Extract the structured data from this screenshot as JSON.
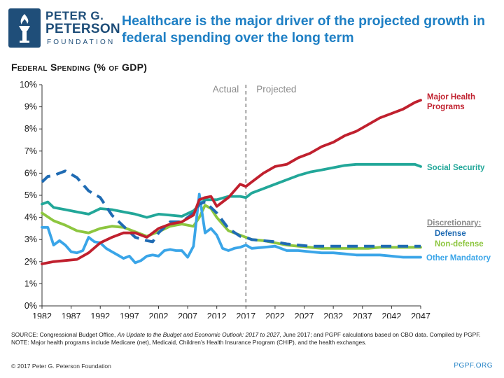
{
  "logo": {
    "line1": "PETER G.",
    "line2": "PETERSON",
    "line3": "FOUNDATION"
  },
  "title": "Healthcare is the major driver of the projected growth in federal spending over the long term",
  "subtitle": "Federal Spending (% of GDP)",
  "notes": {
    "source_prefix": "SOURCE: Congressional Budget Office, ",
    "source_italic": "An Update to the Budget and Economic Outlook: 2017 to 2027",
    "source_suffix": ", June 2017; and PGPF calculations based on CBO data. Compiled by PGPF.",
    "note": "NOTE: Major health programs include Medicare (net), Medicaid, Children’s Health Insurance Program (CHIP), and the health exchanges."
  },
  "footer": {
    "copyright": "© 2017 Peter G. Peterson Foundation",
    "site": "PGPF.ORG"
  },
  "chart_data": {
    "type": "line",
    "xlim": [
      1982,
      2047
    ],
    "ylim": [
      0,
      10
    ],
    "x_ticks": [
      "1982",
      "1987",
      "1992",
      "1997",
      "2002",
      "2007",
      "2012",
      "2017",
      "2022",
      "2027",
      "2032",
      "2037",
      "2042",
      "2047"
    ],
    "y_ticks": [
      "0%",
      "1%",
      "2%",
      "3%",
      "4%",
      "5%",
      "6%",
      "7%",
      "8%",
      "9%",
      "10%"
    ],
    "divider_year": 2017,
    "period_labels": {
      "actual": "Actual",
      "projected": "Projected"
    },
    "group_label": "Discretionary:",
    "series": [
      {
        "name": "Major Health Programs",
        "label": [
          "Major Health",
          "Programs"
        ],
        "color": "#c0202e",
        "dashed": false,
        "x": [
          1982,
          1984,
          1986,
          1988,
          1990,
          1992,
          1994,
          1996,
          1998,
          2000,
          2002,
          2004,
          2006,
          2008,
          2009,
          2010,
          2011,
          2012,
          2014,
          2016,
          2017,
          2018,
          2020,
          2022,
          2024,
          2026,
          2028,
          2030,
          2032,
          2034,
          2036,
          2038,
          2040,
          2042,
          2044,
          2046,
          2047
        ],
        "y": [
          1.9,
          2.0,
          2.05,
          2.1,
          2.4,
          2.85,
          3.1,
          3.3,
          3.3,
          3.1,
          3.5,
          3.7,
          3.8,
          4.1,
          4.8,
          4.9,
          4.95,
          4.5,
          4.9,
          5.5,
          5.4,
          5.6,
          6.0,
          6.3,
          6.4,
          6.7,
          6.9,
          7.2,
          7.4,
          7.7,
          7.9,
          8.2,
          8.5,
          8.7,
          8.9,
          9.2,
          9.3
        ]
      },
      {
        "name": "Social Security",
        "label": [
          "Social Security"
        ],
        "color": "#22a799",
        "dashed": false,
        "x": [
          1982,
          1983,
          1984,
          1986,
          1988,
          1990,
          1992,
          1994,
          1996,
          1998,
          2000,
          2002,
          2004,
          2006,
          2008,
          2010,
          2012,
          2014,
          2016,
          2017,
          2018,
          2020,
          2022,
          2024,
          2026,
          2028,
          2030,
          2032,
          2034,
          2036,
          2038,
          2040,
          2042,
          2044,
          2046,
          2047
        ],
        "y": [
          4.6,
          4.7,
          4.45,
          4.35,
          4.25,
          4.15,
          4.4,
          4.35,
          4.25,
          4.15,
          4.0,
          4.15,
          4.1,
          4.05,
          4.3,
          4.8,
          4.8,
          4.95,
          4.95,
          4.9,
          5.1,
          5.3,
          5.5,
          5.7,
          5.9,
          6.05,
          6.15,
          6.25,
          6.35,
          6.4,
          6.4,
          6.4,
          6.4,
          6.4,
          6.4,
          6.3
        ]
      },
      {
        "name": "Defense",
        "label": [
          "Defense"
        ],
        "color": "#1f6bb3",
        "dashed": true,
        "x": [
          1982,
          1983,
          1984,
          1986,
          1988,
          1990,
          1992,
          1994,
          1996,
          1998,
          2000,
          2001,
          2002,
          2004,
          2006,
          2008,
          2009,
          2010,
          2012,
          2014,
          2016,
          2017,
          2018,
          2020,
          2022,
          2024,
          2026,
          2028,
          2030,
          2032,
          2034,
          2036,
          2038,
          2040,
          2042,
          2044,
          2046,
          2047
        ],
        "y": [
          5.6,
          5.85,
          5.9,
          6.1,
          5.8,
          5.2,
          4.9,
          4.1,
          3.6,
          3.1,
          2.95,
          2.9,
          3.3,
          3.8,
          3.8,
          4.2,
          4.6,
          4.7,
          4.2,
          3.5,
          3.15,
          3.1,
          3.0,
          2.95,
          2.9,
          2.8,
          2.75,
          2.7,
          2.7,
          2.7,
          2.7,
          2.7,
          2.7,
          2.7,
          2.7,
          2.7,
          2.7,
          2.7
        ]
      },
      {
        "name": "Non-defense",
        "label": [
          "Non-defense"
        ],
        "color": "#8dc63f",
        "dashed": false,
        "x": [
          1982,
          1984,
          1986,
          1988,
          1990,
          1992,
          1994,
          1996,
          1998,
          2000,
          2002,
          2004,
          2006,
          2008,
          2009,
          2010,
          2011,
          2012,
          2014,
          2016,
          2017,
          2018,
          2020,
          2022,
          2024,
          2026,
          2028,
          2030,
          2032,
          2034,
          2036,
          2038,
          2040,
          2042,
          2044,
          2046,
          2047
        ],
        "y": [
          4.2,
          3.85,
          3.65,
          3.4,
          3.3,
          3.5,
          3.6,
          3.55,
          3.35,
          3.15,
          3.35,
          3.6,
          3.7,
          3.6,
          4.0,
          4.55,
          4.4,
          4.0,
          3.4,
          3.2,
          3.1,
          3.0,
          2.95,
          2.85,
          2.75,
          2.7,
          2.65,
          2.6,
          2.6,
          2.6,
          2.6,
          2.6,
          2.65,
          2.65,
          2.65,
          2.65,
          2.65
        ]
      },
      {
        "name": "Other Mandatory",
        "label": [
          "Other Mandatory"
        ],
        "color": "#3aa5e8",
        "dashed": false,
        "x": [
          1982,
          1983,
          1984,
          1985,
          1986,
          1987,
          1988,
          1989,
          1990,
          1991,
          1992,
          1993,
          1994,
          1995,
          1996,
          1997,
          1998,
          1999,
          2000,
          2001,
          2002,
          2003,
          2004,
          2005,
          2006,
          2007,
          2008,
          2009,
          2010,
          2011,
          2012,
          2013,
          2014,
          2015,
          2016,
          2017,
          2018,
          2020,
          2022,
          2024,
          2026,
          2028,
          2030,
          2032,
          2034,
          2036,
          2038,
          2040,
          2042,
          2044,
          2046,
          2047
        ],
        "y": [
          3.55,
          3.55,
          2.75,
          2.95,
          2.75,
          2.45,
          2.4,
          2.5,
          3.1,
          2.9,
          2.85,
          2.6,
          2.45,
          2.3,
          2.15,
          2.25,
          1.95,
          2.05,
          2.25,
          2.3,
          2.25,
          2.5,
          2.55,
          2.5,
          2.5,
          2.2,
          2.7,
          5.05,
          3.3,
          3.5,
          3.2,
          2.6,
          2.5,
          2.6,
          2.65,
          2.75,
          2.6,
          2.65,
          2.7,
          2.5,
          2.5,
          2.45,
          2.4,
          2.4,
          2.35,
          2.3,
          2.3,
          2.3,
          2.25,
          2.2,
          2.2,
          2.2
        ]
      }
    ]
  }
}
